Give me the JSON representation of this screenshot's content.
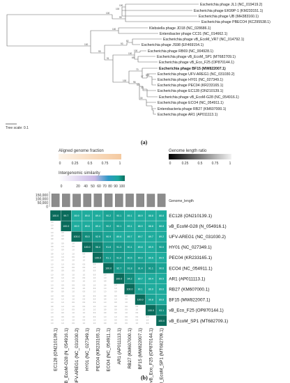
{
  "tree": {
    "leaves": [
      {
        "label": "Escherichia phage JL1 (NC_019419.2)",
        "bold": false
      },
      {
        "label": "Escherichia phage EK99P-1 (KM233151.1)",
        "bold": false
      },
      {
        "label": "Escherichia phage UB (MH383160.1)",
        "bold": false
      },
      {
        "label": "Escherichia phage PBECO4 (KC295538.1)",
        "bold": false
      },
      {
        "label": "Klebsiella phage JD18 (NC_028686.1)",
        "bold": false
      },
      {
        "label": "Enterobacter phage CC31 (NC_014662.1)",
        "bold": false
      },
      {
        "label": "Escherichia phage vB_EcoM_VR7 (NC_014792.1)",
        "bold": false
      },
      {
        "label": "Escherichia phage JS98 (EF469154.1)",
        "bold": false
      },
      {
        "label": "Escherichia phage RB69 (NC_004928.1)",
        "bold": false
      },
      {
        "label": "Escherichia phage vB_EcoM_SP1 (MT682709.1)",
        "bold": false
      },
      {
        "label": "Escherichia phage vB_Eco_F25 (OP870144.1)",
        "bold": false
      },
      {
        "label": "Escherichia phage BF15 (MW822007.1)",
        "bold": true
      },
      {
        "label": "Escherichia phage UFV-AREG1 (NC_031030.2)",
        "bold": false
      },
      {
        "label": "Escherichia phage HY01 (NC_027349.1)",
        "bold": false
      },
      {
        "label": "Escherichia phage PEC04 (KR233165.1)",
        "bold": false
      },
      {
        "label": "Escherichia phage EC128 (ON210139.1)",
        "bold": false
      },
      {
        "label": "Escherichia phage vB_EcoM-G28 (NC_054916.1)",
        "bold": false
      },
      {
        "label": "Escherichia phage ECO4 (NC_054911.1)",
        "bold": false
      },
      {
        "label": "Enterobacteria phage RB27 (KM607000.1)",
        "bold": false
      },
      {
        "label": "Escherichia phage AR1 (AP011113.1)",
        "bold": false
      }
    ],
    "bootstrap": [
      "100",
      "100",
      "99",
      "100",
      "100",
      "100",
      "82",
      "93",
      "99",
      "91",
      "100",
      "100",
      "69",
      "70",
      "100",
      "17",
      "100",
      "96",
      "53",
      "33",
      "30"
    ],
    "scale_label": "Tree scale: 0.1",
    "panel_label": "(a)"
  },
  "legends": {
    "aligned": {
      "title": "Aligned genome fraction",
      "ticks": [
        "0",
        "0.25",
        "0.5",
        "0.75",
        "1"
      ],
      "colors": [
        "#fdf3e7",
        "#f4c9a0"
      ]
    },
    "length": {
      "title": "Genome length ratio",
      "ticks": [
        "0",
        "0.25",
        "0.5",
        "0.75",
        "1"
      ],
      "colors": [
        "#000000",
        "#f2f2f2"
      ]
    },
    "similarity": {
      "title": "Intergenomic similarity",
      "ticks": [
        "0",
        "20",
        "40",
        "50",
        "60",
        "70",
        "80",
        "90",
        "100"
      ],
      "colors": [
        "#ffffff",
        "#c9b8e6",
        "#2f99c7",
        "#1aa89c",
        "#0a6e5e"
      ]
    }
  },
  "heatmap": {
    "genome_length_title": "Genome_length",
    "y_ticks": [
      "150,000",
      "100,000",
      "50,000",
      "0"
    ],
    "phages": [
      "EC128 (ON210139.1)",
      "vB_EcoM-G28 (N_054916.1)",
      "UFV-AREG1 (NC_031030.2)",
      "HY01 (NC_027349.1)",
      "PEC04 (KR233165.1)",
      "ECO4 (NC_054911.1)",
      "AR1 (AP011113.1)",
      "RB27 (KM607000.1)",
      "BF15 (MW822007.1)",
      "vB_Eco_F25 (OP870144.1)",
      "vB_EcoM_SP1 (MT682709.1)"
    ],
    "genome_lengths": [
      168000,
      167000,
      166000,
      167500,
      168500,
      169000,
      167000,
      167500,
      168000,
      166000,
      167000
    ],
    "similarity": [
      [
        100.0,
        99.7,
        89.9,
        89.8,
        89.4,
        90.2,
        90.1,
        89.1,
        88.9,
        88.8,
        88.8
      ],
      [
        99.7,
        100.0,
        89.9,
        89.8,
        89.4,
        90.2,
        90.1,
        89.1,
        88.9,
        88.8,
        88.8
      ],
      [
        89.9,
        89.9,
        100.0,
        93.0,
        92.9,
        90.9,
        89.6,
        89.7,
        89.7,
        89.7,
        89.2
      ],
      [
        89.8,
        89.8,
        93.0,
        100.0,
        96.4,
        91.6,
        91.3,
        90.1,
        89.8,
        89.9,
        90.0
      ],
      [
        89.4,
        89.4,
        92.9,
        96.4,
        100.0,
        91.1,
        91.0,
        90.5,
        90.0,
        89.6,
        89.5
      ],
      [
        90.2,
        90.2,
        90.9,
        91.6,
        91.1,
        100.0,
        92.7,
        91.8,
        91.4,
        91.1,
        90.6
      ],
      [
        90.1,
        90.1,
        89.6,
        91.3,
        91.0,
        92.7,
        100.0,
        94.2,
        89.7,
        89.4,
        89.5
      ],
      [
        89.1,
        89.1,
        89.7,
        90.1,
        90.5,
        91.8,
        94.2,
        100.0,
        90.1,
        89.9,
        89.6
      ],
      [
        88.9,
        88.9,
        89.7,
        89.8,
        90.0,
        91.4,
        89.7,
        90.1,
        100.0,
        90.8,
        89.8
      ],
      [
        88.8,
        88.8,
        89.7,
        89.9,
        89.6,
        91.1,
        89.4,
        89.9,
        90.8,
        100.0,
        93.1
      ],
      [
        88.8,
        88.8,
        89.2,
        90.0,
        89.5,
        90.6,
        89.5,
        89.6,
        89.8,
        93.1,
        100.0
      ]
    ],
    "lower_triangle_values": [
      "1.0",
      "1.0",
      "0.9",
      "0.9",
      "0.9",
      "1.0",
      "0.9",
      "1.0",
      "1.0",
      "0.9"
    ],
    "panel_label": "(b)"
  }
}
